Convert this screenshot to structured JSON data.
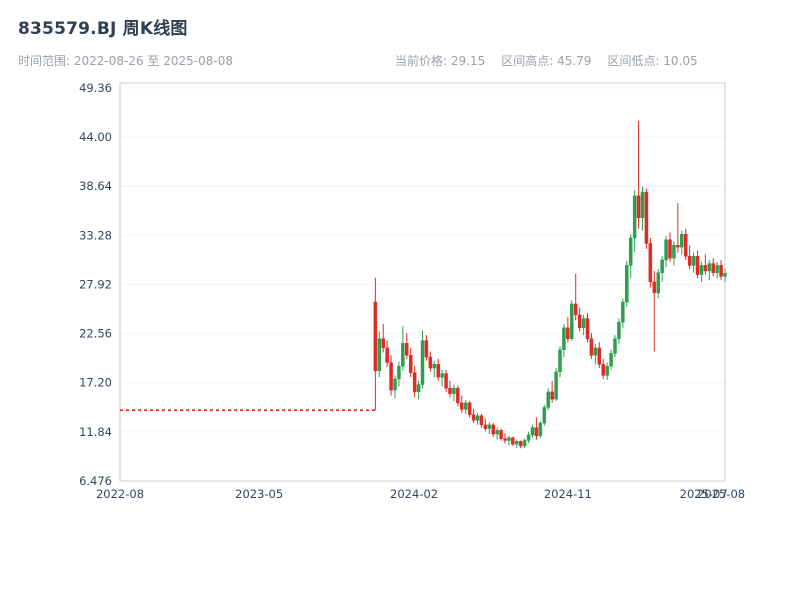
{
  "header": {
    "title": "835579.BJ 周K线图",
    "time_range_label": "时间范围: 2022-08-26 至 2025-08-08",
    "current_price_label": "当前价格: 29.15",
    "range_high_label": "区间高点: 45.79",
    "range_low_label": "区间低点: 10.05"
  },
  "colors": {
    "title": "#2e3f54",
    "subtitle": "#9aa0a8",
    "axis_label": "#35455e",
    "plot_border": "#c6ccd4",
    "grid": "#f2f4f7",
    "up": "#2e9e4f",
    "down": "#de2b26",
    "pre_listing_line": "#e8291f"
  },
  "chart_data": {
    "type": "candlestick",
    "title": "835579.BJ 周K线图",
    "interval": "weekly",
    "x_range": [
      "2022-08-26",
      "2025-08-08"
    ],
    "current_price": 29.15,
    "range_high": 45.79,
    "range_low": 10.05,
    "y_ticks": [
      {
        "label": "49.36",
        "value": 49.36
      },
      {
        "label": "44.00",
        "value": 44.0
      },
      {
        "label": "38.64",
        "value": 38.64
      },
      {
        "label": "33.28",
        "value": 33.28
      },
      {
        "label": "27.92",
        "value": 27.92
      },
      {
        "label": "22.56",
        "value": 22.56
      },
      {
        "label": "17.20",
        "value": 17.2
      },
      {
        "label": "11.84",
        "value": 11.84
      },
      {
        "label": "6.476",
        "value": 6.476
      }
    ],
    "x_ticks": [
      {
        "label": "2022-08",
        "date": "2022-08-26"
      },
      {
        "label": "2023-05",
        "date": "2023-05-01"
      },
      {
        "label": "2024-02",
        "date": "2024-02-01"
      },
      {
        "label": "2024-11",
        "date": "2024-11-01"
      },
      {
        "label": "2025-07",
        "date": "2025-07-01"
      },
      {
        "label": "2025-08",
        "date": "2025-08-01"
      }
    ],
    "pre_listing": {
      "price": 14.2,
      "from": "2022-08-26",
      "to": "2023-11-24",
      "line_style": "dotted"
    },
    "ohlc_columns": [
      "date",
      "open",
      "high",
      "low",
      "close"
    ],
    "ohlc": [
      [
        "2023-11-24",
        26.0,
        28.66,
        14.2,
        18.5
      ],
      [
        "2023-12-01",
        18.5,
        22.8,
        17.8,
        22.0
      ],
      [
        "2023-12-08",
        22.0,
        23.6,
        20.5,
        21.0
      ],
      [
        "2023-12-15",
        21.0,
        21.8,
        18.9,
        19.4
      ],
      [
        "2023-12-22",
        19.4,
        20.2,
        15.8,
        16.4
      ],
      [
        "2023-12-29",
        16.4,
        18.0,
        15.5,
        17.6
      ],
      [
        "2024-01-05",
        17.6,
        19.5,
        16.8,
        19.0
      ],
      [
        "2024-01-12",
        19.0,
        23.4,
        18.5,
        21.5
      ],
      [
        "2024-01-19",
        21.5,
        22.6,
        19.8,
        20.2
      ],
      [
        "2024-01-26",
        20.2,
        21.0,
        17.8,
        18.3
      ],
      [
        "2024-02-02",
        18.3,
        19.0,
        15.6,
        16.2
      ],
      [
        "2024-02-09",
        16.2,
        17.4,
        15.4,
        17.0
      ],
      [
        "2024-02-16",
        17.0,
        22.9,
        16.6,
        21.8
      ],
      [
        "2024-02-23",
        21.8,
        22.4,
        19.6,
        20.0
      ],
      [
        "2024-03-01",
        20.0,
        20.6,
        18.4,
        18.8
      ],
      [
        "2024-03-08",
        18.8,
        19.6,
        17.8,
        19.2
      ],
      [
        "2024-03-15",
        19.2,
        19.8,
        17.4,
        17.8
      ],
      [
        "2024-03-22",
        17.8,
        18.6,
        16.8,
        18.2
      ],
      [
        "2024-03-29",
        18.2,
        18.6,
        16.2,
        16.6
      ],
      [
        "2024-04-05",
        16.6,
        17.4,
        15.6,
        16.0
      ],
      [
        "2024-04-12",
        16.0,
        17.0,
        15.2,
        16.6
      ],
      [
        "2024-04-19",
        16.6,
        16.9,
        14.6,
        15.0
      ],
      [
        "2024-04-26",
        15.0,
        15.8,
        13.9,
        14.3
      ],
      [
        "2024-05-03",
        14.3,
        15.3,
        13.8,
        15.0
      ],
      [
        "2024-05-10",
        15.0,
        15.2,
        13.4,
        13.7
      ],
      [
        "2024-05-17",
        13.7,
        14.4,
        12.8,
        13.1
      ],
      [
        "2024-05-24",
        13.1,
        13.9,
        12.6,
        13.6
      ],
      [
        "2024-05-31",
        13.6,
        13.8,
        12.3,
        12.6
      ],
      [
        "2024-06-07",
        12.6,
        13.3,
        11.9,
        12.2
      ],
      [
        "2024-06-14",
        12.2,
        12.9,
        11.6,
        12.6
      ],
      [
        "2024-06-21",
        12.6,
        12.8,
        11.3,
        11.6
      ],
      [
        "2024-06-28",
        11.6,
        12.3,
        11.0,
        12.0
      ],
      [
        "2024-07-05",
        12.0,
        12.2,
        10.9,
        11.1
      ],
      [
        "2024-07-12",
        11.1,
        11.7,
        10.6,
        10.9
      ],
      [
        "2024-07-19",
        10.9,
        11.4,
        10.4,
        11.2
      ],
      [
        "2024-07-26",
        11.2,
        11.3,
        10.3,
        10.5
      ],
      [
        "2024-08-02",
        10.5,
        11.0,
        10.1,
        10.8
      ],
      [
        "2024-08-09",
        10.8,
        10.9,
        10.05,
        10.3
      ],
      [
        "2024-08-16",
        10.3,
        11.1,
        10.1,
        10.9
      ],
      [
        "2024-08-23",
        10.9,
        11.8,
        10.6,
        11.5
      ],
      [
        "2024-08-30",
        11.5,
        12.6,
        11.2,
        12.3
      ],
      [
        "2024-09-06",
        12.3,
        13.4,
        11.0,
        11.4
      ],
      [
        "2024-09-13",
        11.4,
        13.0,
        11.2,
        12.8
      ],
      [
        "2024-09-20",
        12.8,
        14.8,
        12.5,
        14.5
      ],
      [
        "2024-09-27",
        14.5,
        16.6,
        14.2,
        16.2
      ],
      [
        "2024-10-04",
        16.2,
        17.4,
        15.0,
        15.4
      ],
      [
        "2024-10-11",
        15.4,
        18.8,
        15.2,
        18.4
      ],
      [
        "2024-10-18",
        18.4,
        21.2,
        17.8,
        20.8
      ],
      [
        "2024-10-25",
        20.8,
        23.6,
        20.0,
        23.2
      ],
      [
        "2024-11-01",
        23.2,
        24.4,
        21.6,
        22.0
      ],
      [
        "2024-11-08",
        22.0,
        26.2,
        21.8,
        25.8
      ],
      [
        "2024-11-15",
        25.8,
        29.1,
        24.0,
        24.6
      ],
      [
        "2024-11-22",
        24.6,
        25.4,
        22.8,
        23.2
      ],
      [
        "2024-11-29",
        23.2,
        24.6,
        22.4,
        24.2
      ],
      [
        "2024-12-06",
        24.2,
        24.8,
        21.6,
        22.0
      ],
      [
        "2024-12-13",
        22.0,
        22.6,
        19.8,
        20.2
      ],
      [
        "2024-12-20",
        20.2,
        21.4,
        19.2,
        21.0
      ],
      [
        "2024-12-27",
        21.0,
        21.6,
        18.8,
        19.2
      ],
      [
        "2025-01-03",
        19.2,
        19.8,
        17.6,
        18.0
      ],
      [
        "2025-01-10",
        18.0,
        19.4,
        17.5,
        19.0
      ],
      [
        "2025-01-17",
        19.0,
        20.8,
        18.6,
        20.4
      ],
      [
        "2025-01-24",
        20.4,
        22.4,
        20.0,
        22.0
      ],
      [
        "2025-01-31",
        22.0,
        24.2,
        21.4,
        23.8
      ],
      [
        "2025-02-07",
        23.8,
        26.4,
        23.2,
        26.0
      ],
      [
        "2025-02-14",
        26.0,
        30.5,
        25.5,
        30.0
      ],
      [
        "2025-02-21",
        30.0,
        33.4,
        28.6,
        33.0
      ],
      [
        "2025-02-28",
        33.0,
        38.2,
        31.5,
        37.6
      ],
      [
        "2025-03-07",
        37.6,
        45.79,
        34.0,
        35.2
      ],
      [
        "2025-03-14",
        35.2,
        38.6,
        33.8,
        38.0
      ],
      [
        "2025-03-21",
        38.0,
        38.4,
        31.8,
        32.4
      ],
      [
        "2025-03-28",
        32.4,
        33.0,
        27.6,
        28.2
      ],
      [
        "2025-04-04",
        28.2,
        29.4,
        20.6,
        27.0
      ],
      [
        "2025-04-11",
        27.0,
        29.6,
        26.4,
        29.2
      ],
      [
        "2025-04-18",
        29.2,
        31.0,
        28.2,
        30.6
      ],
      [
        "2025-04-25",
        30.6,
        33.2,
        29.8,
        32.8
      ],
      [
        "2025-05-02",
        32.8,
        33.6,
        30.4,
        30.8
      ],
      [
        "2025-05-09",
        30.8,
        32.6,
        30.0,
        32.2
      ],
      [
        "2025-05-16",
        32.2,
        36.8,
        31.4,
        32.0
      ],
      [
        "2025-05-23",
        32.0,
        33.8,
        31.2,
        33.4
      ],
      [
        "2025-05-30",
        33.4,
        34.0,
        30.6,
        31.0
      ],
      [
        "2025-06-06",
        31.0,
        32.2,
        29.6,
        30.0
      ],
      [
        "2025-06-13",
        30.0,
        31.4,
        29.2,
        31.0
      ],
      [
        "2025-06-20",
        31.0,
        31.6,
        28.6,
        29.0
      ],
      [
        "2025-06-27",
        29.0,
        30.4,
        28.2,
        30.0
      ],
      [
        "2025-07-04",
        30.0,
        31.2,
        29.0,
        29.4
      ],
      [
        "2025-07-11",
        29.4,
        30.6,
        28.4,
        30.2
      ],
      [
        "2025-07-18",
        30.2,
        30.8,
        28.8,
        29.2
      ],
      [
        "2025-07-25",
        29.2,
        30.4,
        28.6,
        30.0
      ],
      [
        "2025-08-01",
        30.0,
        30.6,
        28.4,
        28.8
      ],
      [
        "2025-08-08",
        28.8,
        29.6,
        28.2,
        29.15
      ]
    ]
  }
}
